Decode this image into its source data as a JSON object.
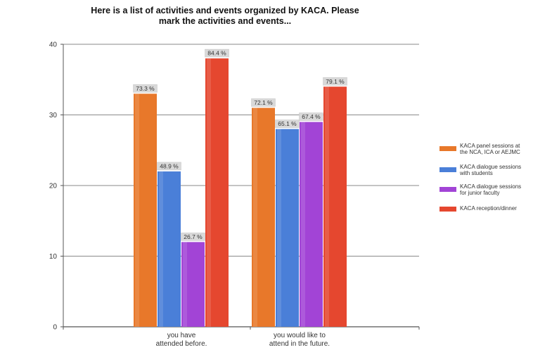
{
  "chart_data": {
    "type": "bar",
    "title": "Here is a list of activities and events organized by KACA. Please\nmark the activities and events...",
    "xlabel": "",
    "ylabel": "",
    "ylim": [
      0,
      40
    ],
    "yticks": [
      0,
      10,
      20,
      30,
      40
    ],
    "grid": true,
    "legend_position": "right",
    "categories": [
      [
        "you have",
        "attended before."
      ],
      [
        "you would like to",
        "attend in the future."
      ]
    ],
    "series": [
      {
        "name": [
          "KACA panel sessions at",
          "the NCA, ICA or AEJMC"
        ],
        "color": "#e8782a",
        "values": [
          33,
          31
        ],
        "labels": [
          "73.3 %",
          "72.1 %"
        ]
      },
      {
        "name": [
          "KACA dialogue sessions",
          "with students"
        ],
        "color": "#4a7fd8",
        "values": [
          22,
          28
        ],
        "labels": [
          "48.9 %",
          "65.1 %"
        ]
      },
      {
        "name": [
          "KACA dialogue sessions",
          "for junior faculty"
        ],
        "color": "#a244d6",
        "values": [
          12,
          29
        ],
        "labels": [
          "26.7 %",
          "67.4 %"
        ]
      },
      {
        "name": [
          "KACA reception/dinner"
        ],
        "color": "#e5472f",
        "values": [
          38,
          34
        ],
        "labels": [
          "84.4 %",
          "79.1 %"
        ]
      }
    ]
  }
}
